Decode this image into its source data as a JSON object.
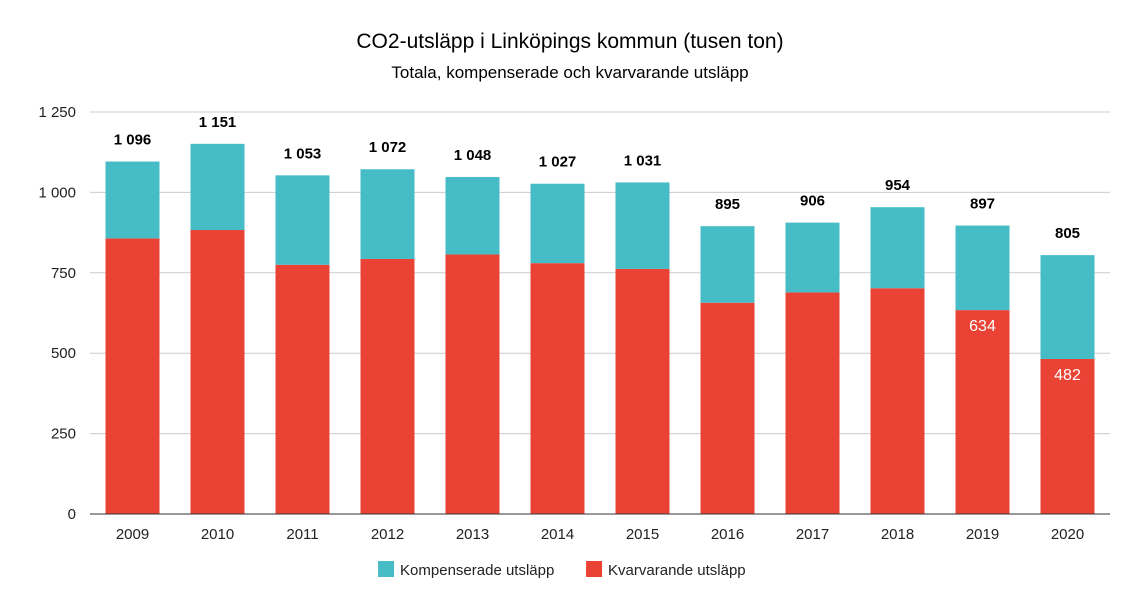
{
  "chart_data": {
    "type": "bar",
    "stacked": true,
    "title": "CO2-utsläpp i Linköpings kommun (tusen ton)",
    "subtitle": "Totala, kompenserade och kvarvarande utsläpp",
    "categories": [
      "2009",
      "2010",
      "2011",
      "2012",
      "2013",
      "2014",
      "2015",
      "2016",
      "2017",
      "2018",
      "2019",
      "2020"
    ],
    "series": [
      {
        "name": "Kvarvarande utsläpp",
        "color": "#ea4335",
        "values": [
          857,
          883,
          775,
          793,
          807,
          780,
          762,
          657,
          689,
          702,
          634,
          482
        ]
      },
      {
        "name": "Kompenserade utsläpp",
        "color": "#46bdc6",
        "values": [
          239,
          268,
          278,
          279,
          241,
          247,
          269,
          238,
          217,
          252,
          263,
          323
        ]
      }
    ],
    "totals": [
      1096,
      1151,
      1053,
      1072,
      1048,
      1027,
      1031,
      895,
      906,
      954,
      897,
      805
    ],
    "total_labels": [
      "1 096",
      "1 151",
      "1 053",
      "1 072",
      "1 048",
      "1 027",
      "1 031",
      "895",
      "906",
      "954",
      "897",
      "805"
    ],
    "inner_labels": [
      "",
      "",
      "",
      "",
      "",
      "",
      "",
      "",
      "",
      "",
      "634",
      "482"
    ],
    "ylim": [
      0,
      1250
    ],
    "yticks": [
      0,
      250,
      500,
      750,
      1000,
      1250
    ],
    "ytick_labels": [
      "0",
      "250",
      "500",
      "750",
      "1 000",
      "1 250"
    ],
    "xlabel": "",
    "ylabel": "",
    "grid": true,
    "legend_position": "bottom",
    "legend": [
      {
        "name": "Kompenserade utsläpp",
        "color": "#46bdc6"
      },
      {
        "name": "Kvarvarande utsläpp",
        "color": "#ea4335"
      }
    ]
  }
}
